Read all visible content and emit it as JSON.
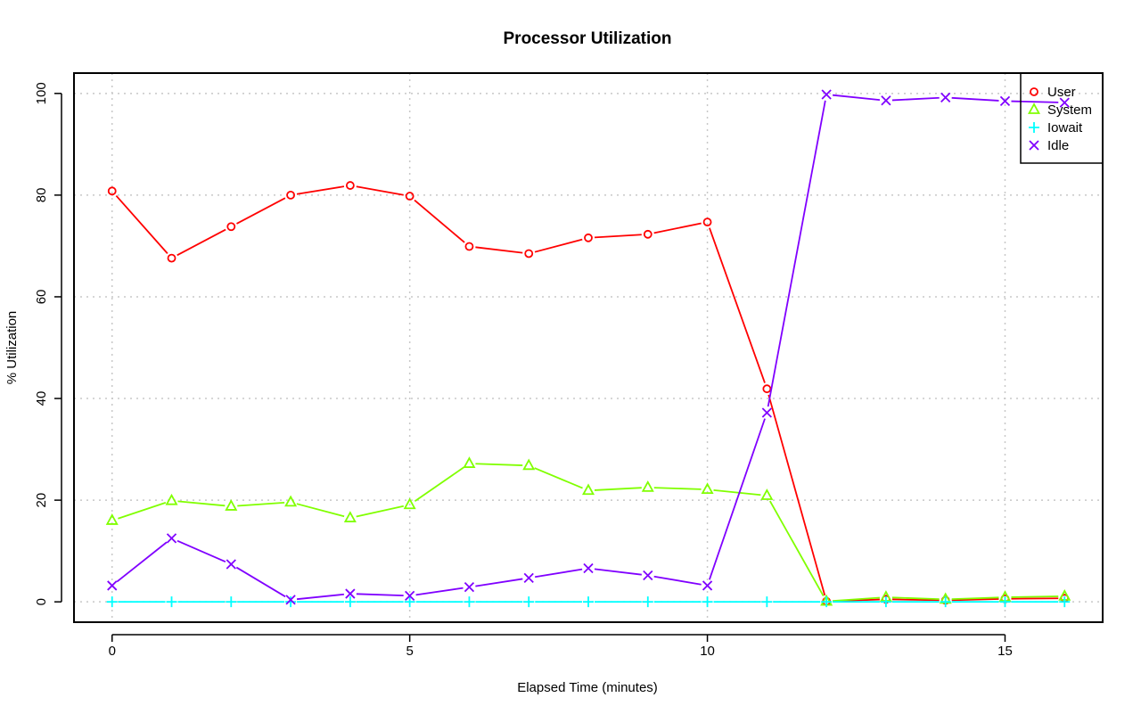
{
  "chart_data": {
    "type": "line",
    "title": "Processor Utilization",
    "xlabel": "Elapsed Time (minutes)",
    "ylabel": "% Utilization",
    "xlim": [
      -0.64,
      16.64
    ],
    "ylim": [
      -4,
      104
    ],
    "xticks": [
      0,
      5,
      10,
      15
    ],
    "yticks": [
      0,
      20,
      40,
      60,
      80,
      100
    ],
    "grid": true,
    "legend_position": "top-right",
    "x": [
      0,
      1,
      2,
      3,
      4,
      5,
      6,
      7,
      8,
      9,
      10,
      11,
      12,
      13,
      14,
      15,
      16
    ],
    "series": [
      {
        "name": "User",
        "color": "#ff0000",
        "marker": "circle",
        "values": [
          80.8,
          67.6,
          73.8,
          80.0,
          81.9,
          79.8,
          69.9,
          68.5,
          71.6,
          72.3,
          74.7,
          41.9,
          0.1,
          0.5,
          0.3,
          0.6,
          0.7
        ]
      },
      {
        "name": "System",
        "color": "#80ff00",
        "marker": "triangle",
        "values": [
          16.0,
          19.9,
          18.8,
          19.6,
          16.5,
          19.1,
          27.2,
          26.8,
          21.9,
          22.5,
          22.1,
          20.9,
          0.1,
          0.9,
          0.5,
          0.9,
          1.1
        ]
      },
      {
        "name": "Iowait",
        "color": "#00ffff",
        "marker": "plus",
        "values": [
          0,
          0,
          0,
          0,
          0,
          0,
          0,
          0,
          0,
          0,
          0,
          0,
          0,
          0,
          0,
          0,
          0
        ]
      },
      {
        "name": "Idle",
        "color": "#8000ff",
        "marker": "cross",
        "values": [
          3.2,
          12.5,
          7.4,
          0.4,
          1.6,
          1.2,
          2.9,
          4.7,
          6.6,
          5.2,
          3.2,
          37.2,
          99.8,
          98.6,
          99.2,
          98.5,
          98.2
        ]
      }
    ]
  }
}
